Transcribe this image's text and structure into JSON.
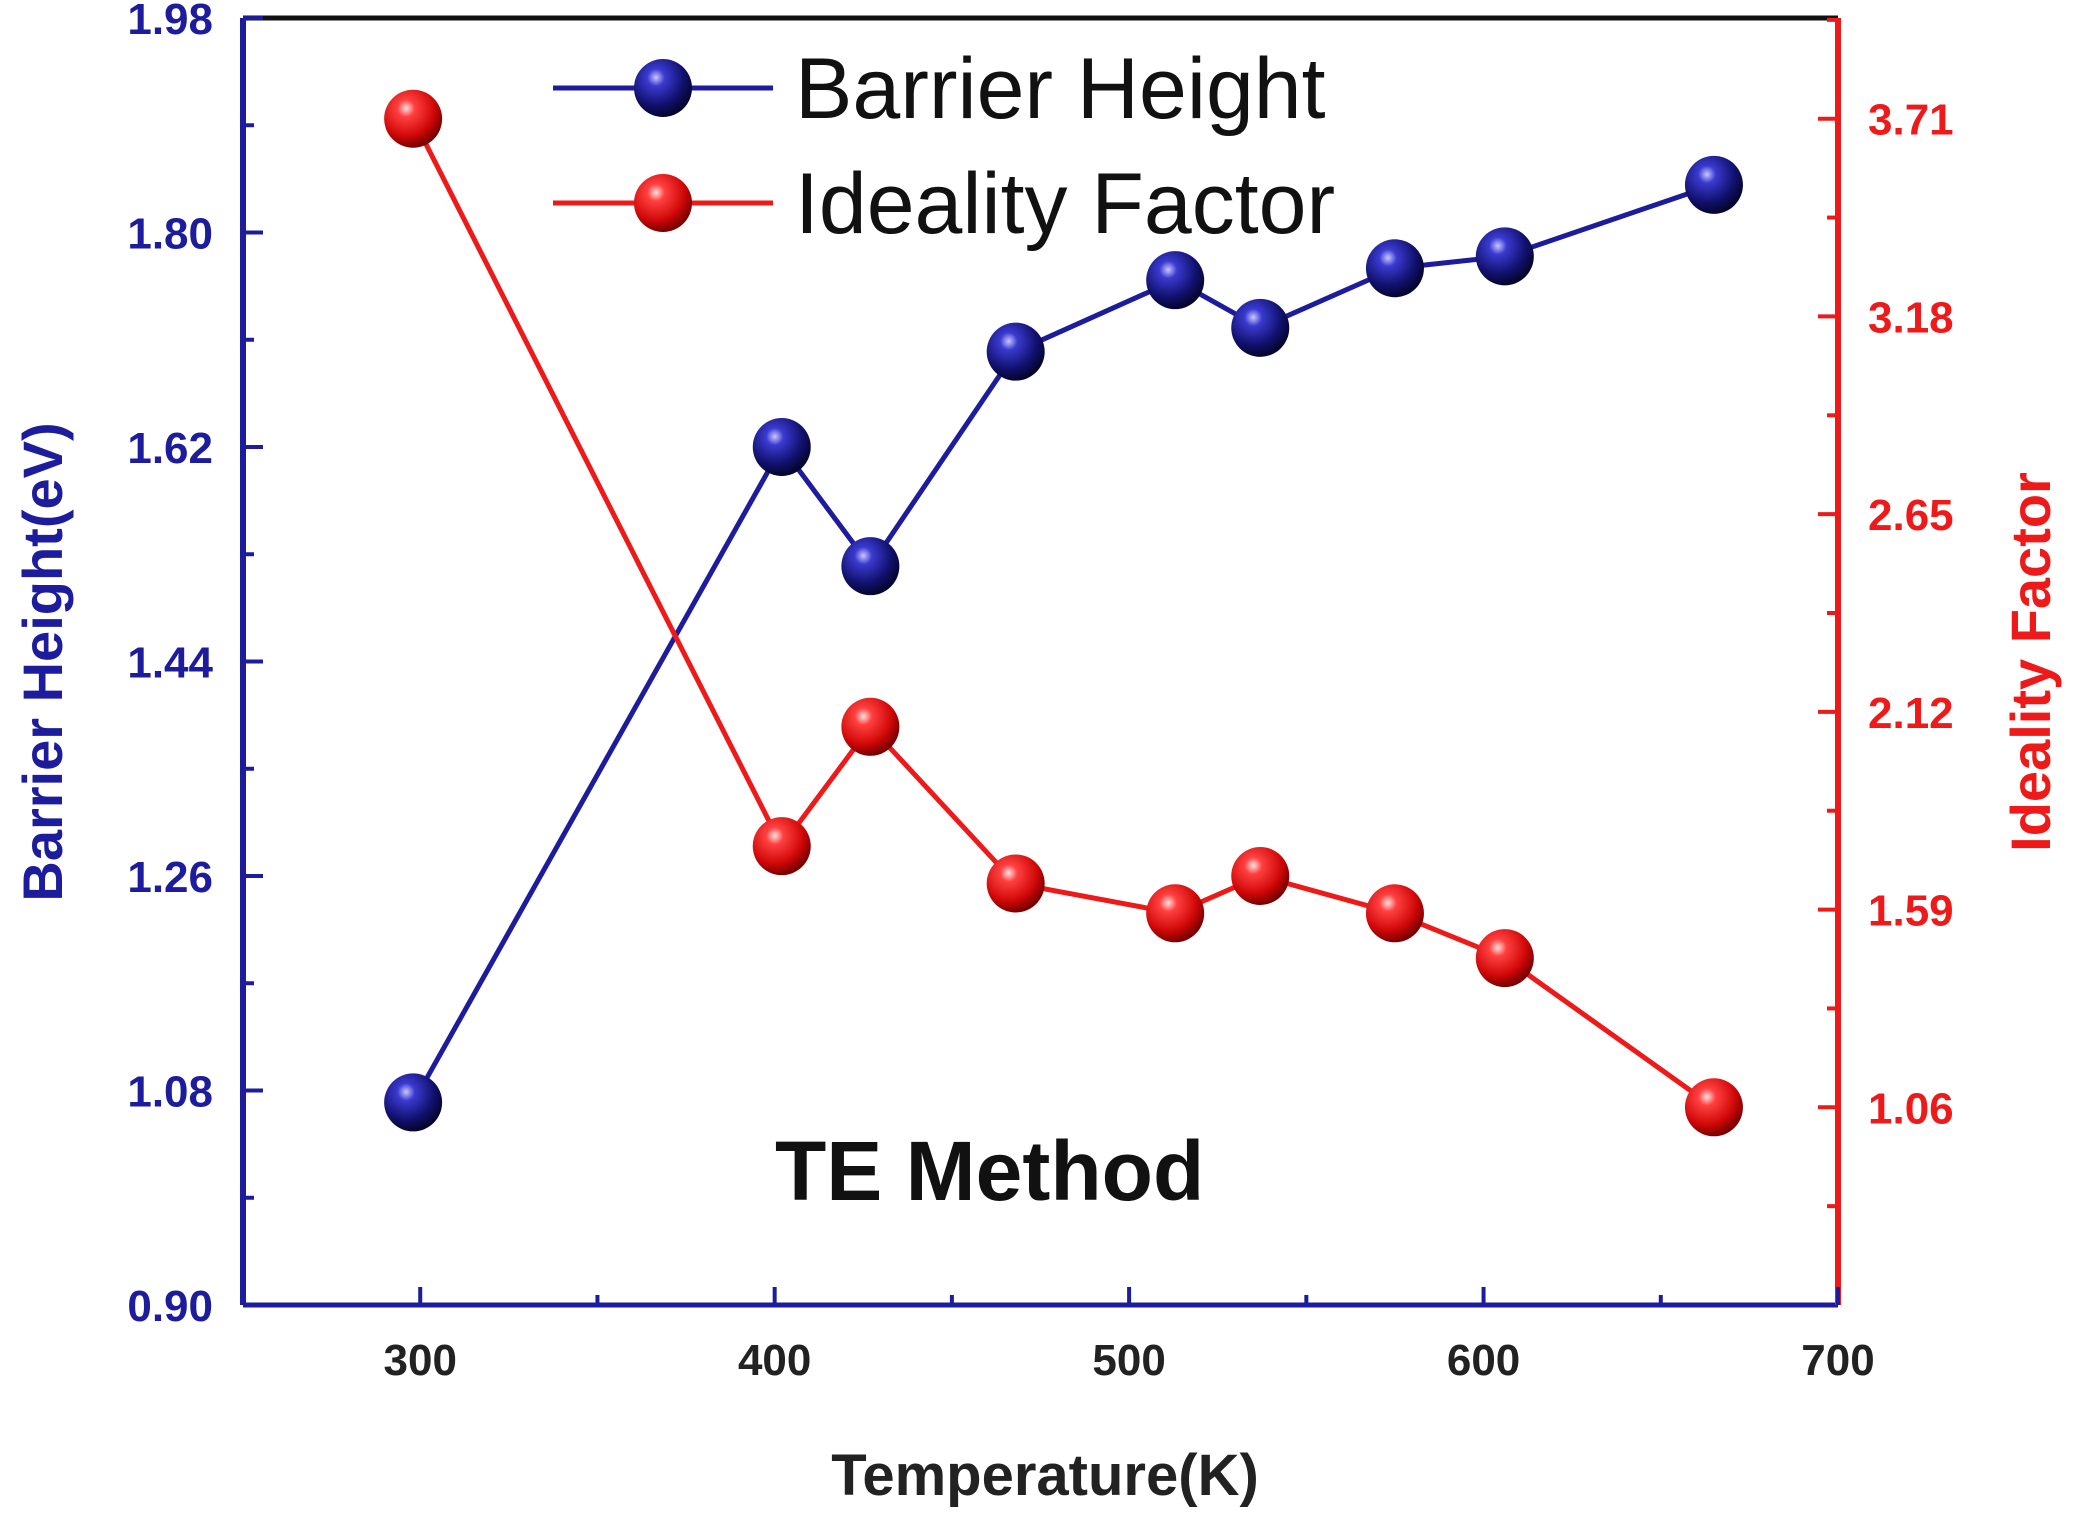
{
  "chart_data": {
    "type": "line",
    "title": "",
    "annotation": "TE Method",
    "xlabel": "Temperature(K)",
    "ylabel": "Barrier Height(eV)",
    "y2label": "Ideality Factor",
    "xlim": [
      250,
      700
    ],
    "xticks": [
      300,
      400,
      500,
      600,
      700
    ],
    "ylim": [
      0.9,
      1.98
    ],
    "yticks": [
      "0.90",
      "1.08",
      "1.26",
      "1.44",
      "1.62",
      "1.80",
      "1.98"
    ],
    "y2lim": [
      0.53,
      3.98
    ],
    "y2ticks": [
      "1.06",
      "1.59",
      "2.12",
      "2.65",
      "3.18",
      "3.71"
    ],
    "legend_position": "top-left",
    "grid": false,
    "x": [
      298,
      402,
      427,
      468,
      513,
      537,
      575,
      606,
      665
    ],
    "series": [
      {
        "name": "Barrier Height",
        "axis": "left",
        "color": "#1c1c9c",
        "values": [
          1.07,
          1.62,
          1.52,
          1.7,
          1.76,
          1.72,
          1.77,
          1.78,
          1.84
        ]
      },
      {
        "name": "Ideality Factor",
        "axis": "right",
        "color": "#ee1a1a",
        "values": [
          3.71,
          1.76,
          2.08,
          1.66,
          1.58,
          1.68,
          1.58,
          1.46,
          1.06
        ]
      }
    ]
  }
}
